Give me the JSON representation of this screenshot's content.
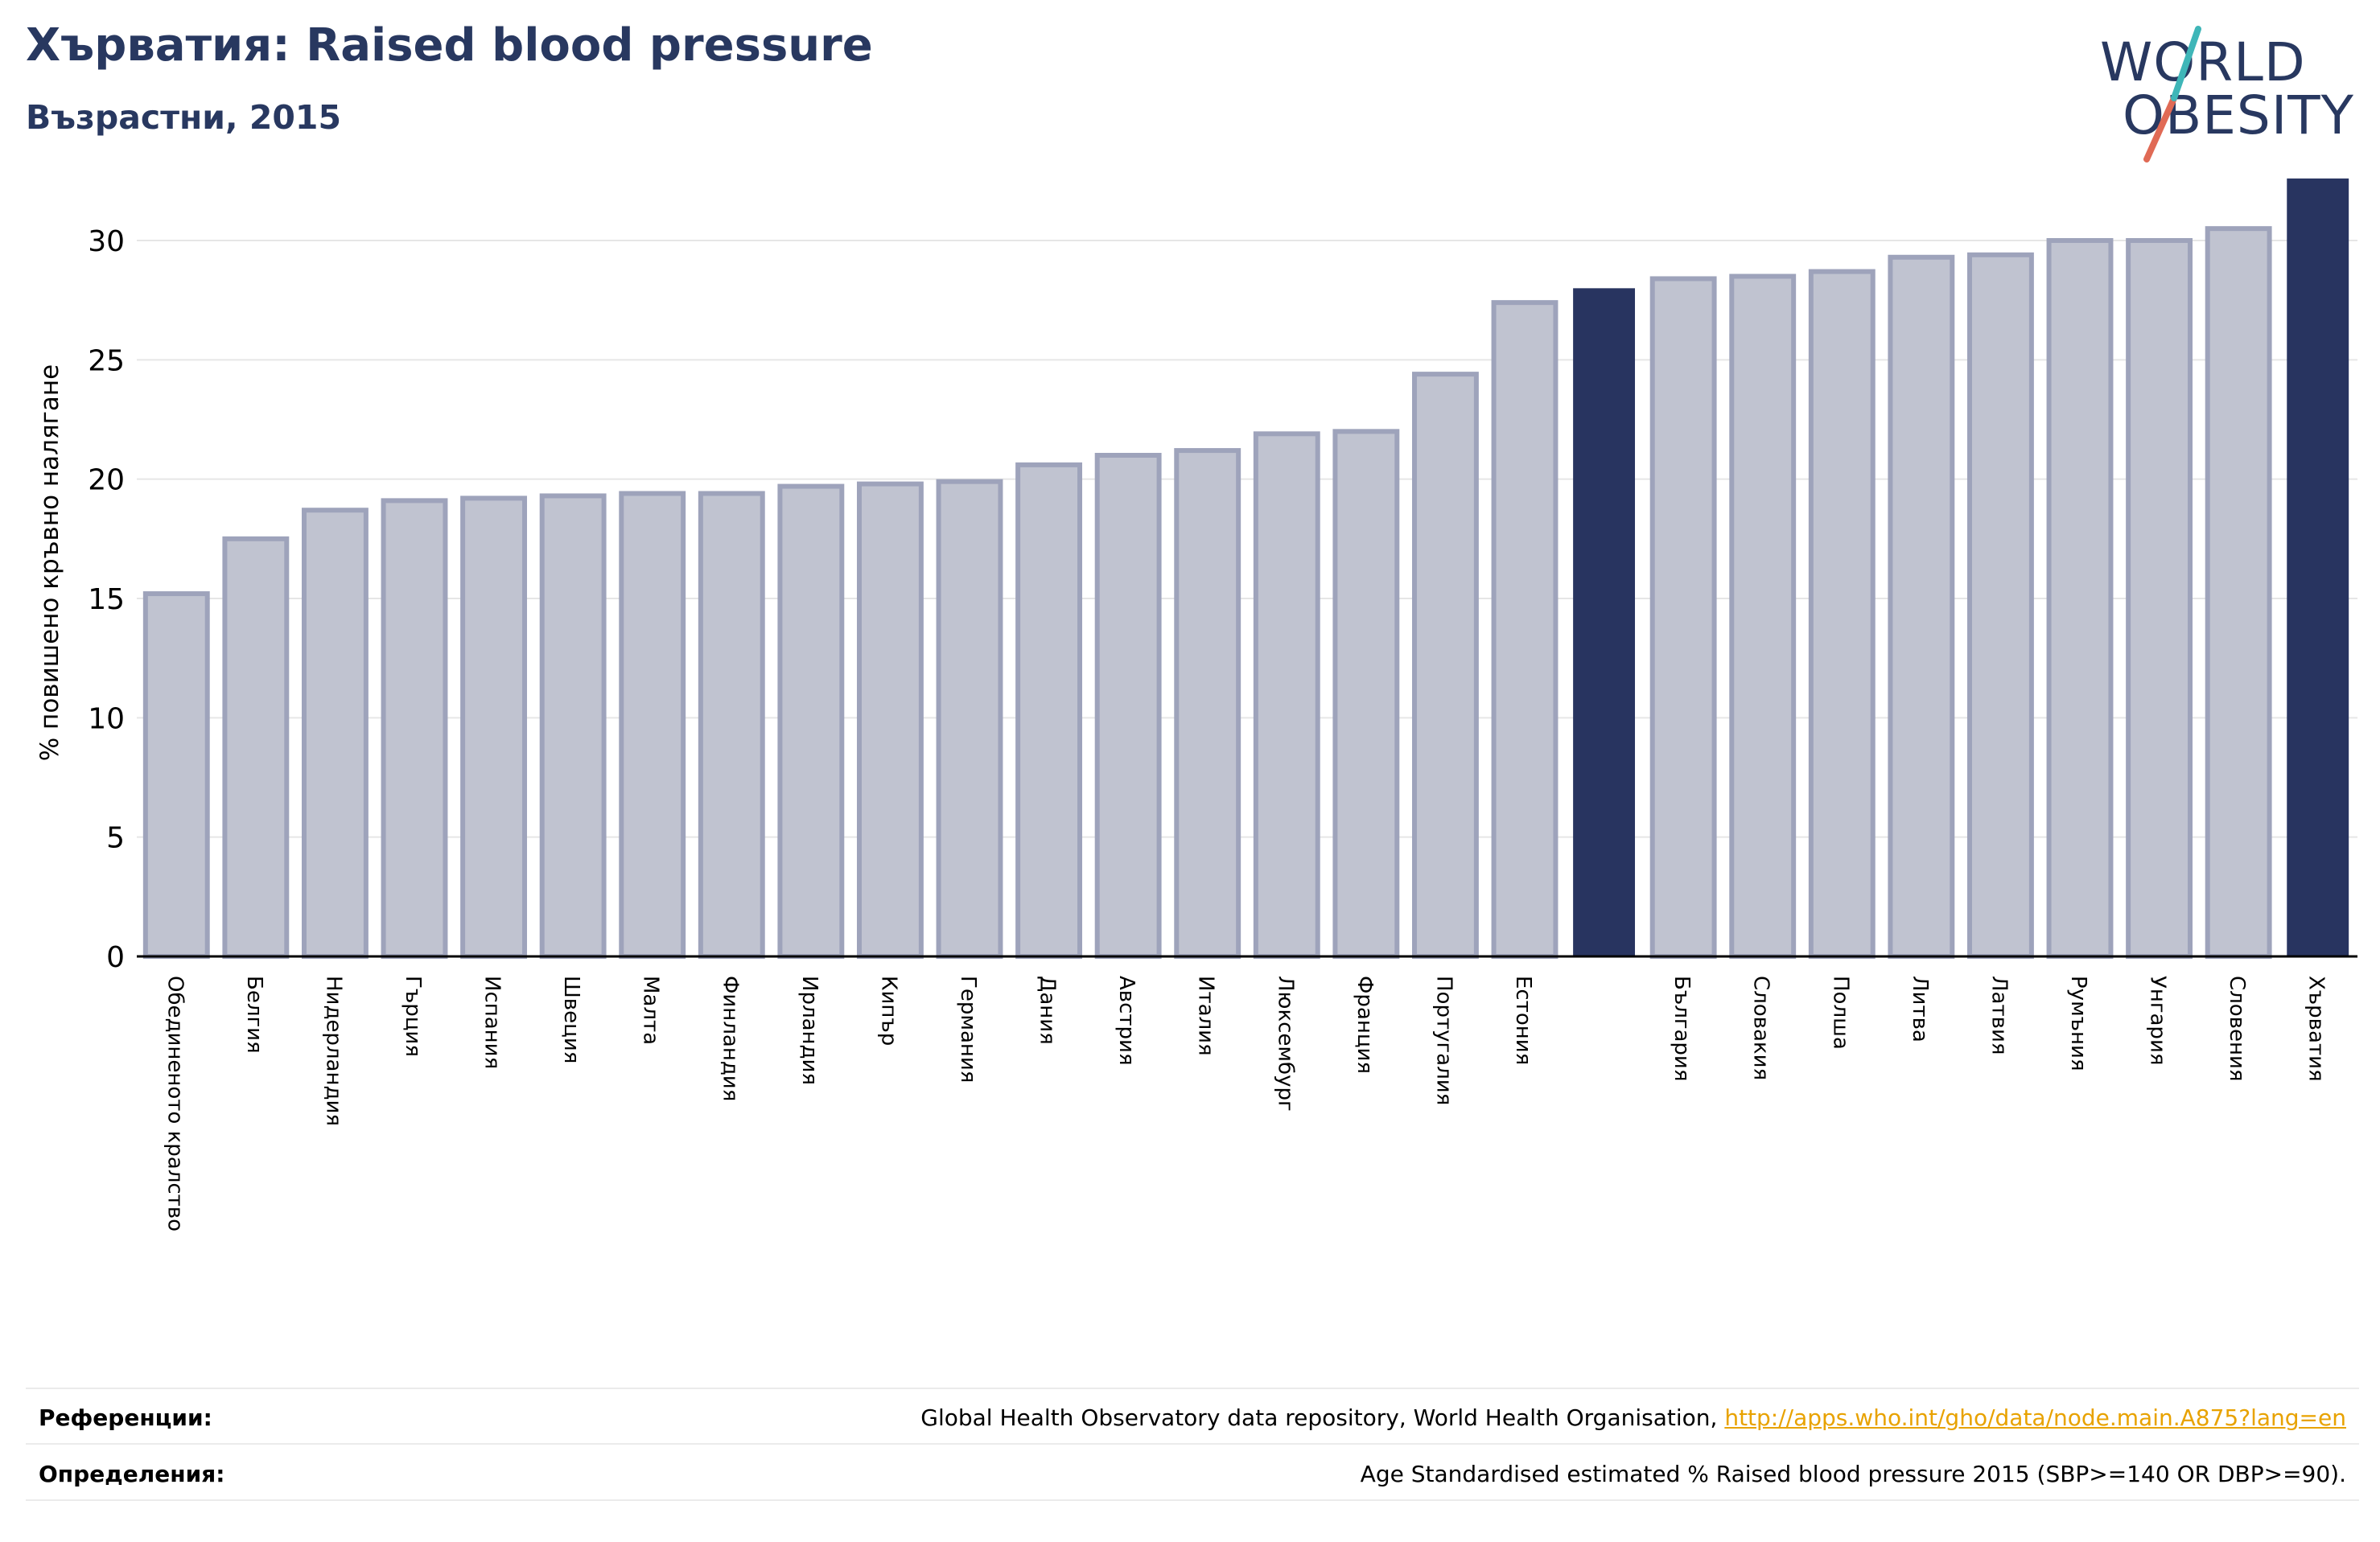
{
  "header": {
    "title": "Хърватия: Raised blood pressure",
    "subtitle": "Възрастни, 2015"
  },
  "logo": {
    "line1": "WORLD",
    "line2": "OBESITY"
  },
  "colors": {
    "navy": "#283460",
    "bar_fill": "#c0c3d0",
    "bar_stroke": "#9ea3bb",
    "link": "#e8a200"
  },
  "chart_data": {
    "type": "bar",
    "ylabel": "% повишено кръвно налягане",
    "xlabel": "",
    "ylim": [
      0,
      33
    ],
    "yticks": [
      0,
      5,
      10,
      15,
      20,
      25,
      30
    ],
    "grid": true,
    "categories": [
      "Обединеното кралство",
      "Белгия",
      "Нидерландия",
      "Гърция",
      "Испания",
      "Швеция",
      "Малта",
      "Финландия",
      "Ирландия",
      "Кипър",
      "Германия",
      "Дания",
      "Австрия",
      "Италия",
      "Люксембург",
      "Франция",
      "Португалия",
      "Естония",
      "",
      "България",
      "Словакия",
      "Полша",
      "Литва",
      "Латвия",
      "Румъния",
      "Унгария",
      "Словения",
      "Хърватия"
    ],
    "values": [
      15.2,
      17.5,
      18.7,
      19.1,
      19.2,
      19.3,
      19.4,
      19.4,
      19.7,
      19.8,
      19.9,
      20.6,
      21.0,
      21.2,
      21.9,
      22.0,
      24.4,
      27.4,
      28.0,
      28.4,
      28.5,
      28.7,
      29.3,
      29.4,
      30.0,
      30.0,
      30.5,
      32.6
    ],
    "highlighted": [
      18,
      27
    ]
  },
  "footer": {
    "references_label": "Референции:",
    "references_text": "Global Health Observatory data repository, World Health Organisation, ",
    "references_link": "http://apps.who.int/gho/data/node.main.A875?lang=en",
    "definitions_label": "Определения:",
    "definitions_text": "Age Standardised estimated % Raised blood pressure 2015 (SBP>=140 OR DBP>=90)."
  }
}
